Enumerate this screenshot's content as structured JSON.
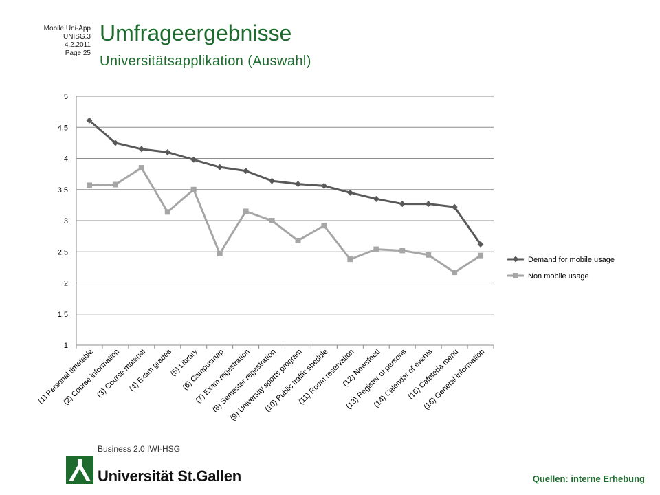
{
  "meta": {
    "line1": "Mobile Uni-App",
    "line2": "UNISG.3",
    "line3": "4.2.2011",
    "line4": "Page 25"
  },
  "header": {
    "title": "Umfrageergebnisse",
    "subtitle": "Universitätsapplikation  (Auswahl)"
  },
  "footer": {
    "source": "Quellen: interne Erhebung",
    "logo_tagline": "Business 2.0 IWI-HSG",
    "logo_name": "Universität St.Gallen",
    "brand_color": "#1e6b2e"
  },
  "chart_data": {
    "type": "line",
    "categories": [
      "(1) Personal timetable",
      "(2) Course information",
      "(3) Course material",
      "(4) Exam grades",
      "(5) Library",
      "(6) Campusmap",
      "(7) Exam regestration",
      "(8) Semester regestration",
      "(9) University sports program",
      "(10) Public traffic shedule",
      "(11) Room reservation",
      "(12) Newsfeed",
      "(13) Register of persons",
      "(14) Calendar of events",
      "(15) Cafeteria menu",
      "(16) General information"
    ],
    "series": [
      {
        "name": "Demand for mobile usage",
        "color": "#595959",
        "marker": "diamond",
        "values": [
          4.61,
          4.25,
          4.15,
          4.1,
          3.98,
          3.86,
          3.8,
          3.64,
          3.59,
          3.56,
          3.45,
          3.35,
          3.27,
          3.27,
          3.22,
          2.62
        ]
      },
      {
        "name": "Non mobile usage",
        "color": "#a6a6a6",
        "marker": "square",
        "values": [
          3.57,
          3.58,
          3.85,
          3.14,
          3.5,
          2.47,
          3.15,
          3.0,
          2.68,
          2.92,
          2.38,
          2.54,
          2.52,
          2.45,
          2.17,
          2.44
        ]
      }
    ],
    "yticks": [
      "1",
      "1,5",
      "2",
      "2,5",
      "3",
      "3,5",
      "4",
      "4,5",
      "5"
    ],
    "ylim": [
      1,
      5
    ],
    "grid": true,
    "legend": "right"
  }
}
